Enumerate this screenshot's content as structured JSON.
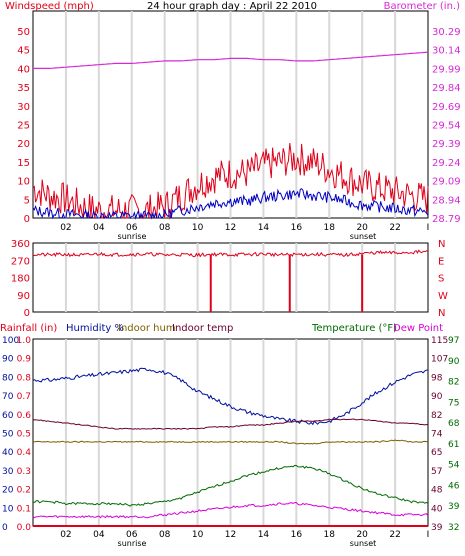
{
  "colors": {
    "wind": "#e0001a",
    "baro": "#d62ad6",
    "dir": "#e0001a",
    "gust": "#0000c0",
    "humidity": "#00109c",
    "indoor_hum": "#7a6000",
    "indoor_temp": "#6a0030",
    "temperature": "#006a00",
    "dew_point": "#d900d9",
    "grid": "#d8d8d8"
  },
  "chart_data": [
    {
      "type": "line",
      "title": "24 hour graph day : April 22 2010",
      "ylabel": "Windspeed (mph)",
      "y2label": "Barometer (in.)",
      "ylim": [
        0,
        50
      ],
      "y2lim": [
        28.79,
        30.29
      ],
      "yticks": [
        "0",
        "5",
        "10",
        "15",
        "20",
        "25",
        "30",
        "35",
        "40",
        "45",
        "50"
      ],
      "y2ticks": [
        "28.79",
        "28.94",
        "29.09",
        "29.24",
        "29.39",
        "29.54",
        "29.69",
        "29.84",
        "29.99",
        "30.14",
        "30.29"
      ],
      "xticks": [
        "02",
        "04",
        "06",
        "08",
        "10",
        "12",
        "14",
        "16",
        "18",
        "20",
        "22",
        "I"
      ],
      "sunrise_label": "sunrise",
      "sunset_label": "sunset",
      "hours": [
        0,
        1,
        2,
        3,
        4,
        5,
        6,
        7,
        8,
        9,
        10,
        11,
        12,
        13,
        14,
        15,
        16,
        17,
        18,
        19,
        20,
        21,
        22,
        23,
        24
      ],
      "series": [
        {
          "values": [
            8,
            6,
            5,
            3,
            2,
            2,
            2,
            2,
            3,
            6,
            9,
            11,
            12,
            12,
            14,
            15,
            16,
            15,
            13,
            11,
            9,
            8,
            7,
            6,
            5
          ]
        },
        {
          "values": [
            2,
            1.5,
            1,
            0.7,
            0.5,
            0.5,
            0.5,
            0.5,
            0.8,
            2,
            3,
            4,
            4.5,
            4.5,
            5.5,
            6,
            6.5,
            6,
            5.5,
            4.5,
            3.5,
            3,
            2.5,
            2,
            1.5
          ]
        },
        {
          "axis": "right",
          "values": [
            29.99,
            29.99,
            30.0,
            30.01,
            30.02,
            30.03,
            30.03,
            30.04,
            30.05,
            30.05,
            30.06,
            30.06,
            30.07,
            30.07,
            30.06,
            30.06,
            30.05,
            30.05,
            30.06,
            30.07,
            30.08,
            30.09,
            30.1,
            30.11,
            30.12
          ]
        }
      ]
    },
    {
      "type": "line",
      "ylim": [
        0,
        360
      ],
      "yticks": [
        "0",
        "90",
        "180",
        "270",
        "360"
      ],
      "y2ticks": [
        "N",
        "W",
        "S",
        "E",
        "N"
      ],
      "hours": [
        0,
        1,
        2,
        3,
        4,
        5,
        6,
        7,
        8,
        9,
        10,
        11,
        12,
        13,
        14,
        15,
        16,
        17,
        18,
        19,
        20,
        21,
        22,
        23,
        24
      ],
      "series": [
        {
          "values": [
            300,
            298,
            300,
            296,
            303,
            299,
            301,
            302,
            298,
            300,
            297,
            301,
            299,
            300,
            303,
            298,
            300,
            301,
            299,
            297,
            305,
            310,
            308,
            312,
            314
          ]
        }
      ],
      "drops": [
        {
          "hour": 10.8,
          "value": 0
        },
        {
          "hour": 15.6,
          "value": 0
        },
        {
          "hour": 20.0,
          "value": 0
        }
      ]
    },
    {
      "type": "line",
      "legend": {
        "rainfall": "Rainfall (in)",
        "humidity": "Humidity %",
        "indoor_hum": "Indoor hum",
        "indoor_temp": "Indoor temp",
        "temperature": "Temperature (°F)",
        "dew_point": "Dew Point"
      },
      "ylim": [
        0,
        100
      ],
      "yticks_pct": [
        "0",
        "10",
        "20",
        "30",
        "40",
        "50",
        "60",
        "70",
        "80",
        "90",
        "100"
      ],
      "yticks_rain": [
        "0.0",
        "0.1",
        "0.2",
        "0.3",
        "0.4",
        "0.5",
        "0.6",
        "0.7",
        "0.8",
        "0.9",
        "1.0"
      ],
      "y2lim": [
        32,
        115
      ],
      "y2ticks_a": [
        "39",
        "40",
        "48",
        "57",
        "65",
        "74",
        "82",
        "90",
        "98",
        "107",
        "115"
      ],
      "y2ticks_b": [
        "32",
        "39",
        "46",
        "54",
        "61",
        "68",
        "75",
        "82",
        "90",
        "97"
      ],
      "xticks": [
        "02",
        "04",
        "06",
        "08",
        "10",
        "12",
        "14",
        "16",
        "18",
        "20",
        "22",
        "I"
      ],
      "sunrise_label": "sunrise",
      "sunset_label": "sunset",
      "hours": [
        0,
        1,
        2,
        3,
        4,
        5,
        6,
        7,
        8,
        9,
        10,
        11,
        12,
        13,
        14,
        15,
        16,
        17,
        18,
        19,
        20,
        21,
        22,
        23,
        24
      ],
      "series": [
        {
          "key": "humidity",
          "values": [
            78,
            78,
            79,
            80,
            81,
            82,
            83,
            84,
            82,
            78,
            72,
            68,
            64,
            61,
            59,
            57,
            56,
            55,
            56,
            60,
            66,
            72,
            77,
            81,
            83
          ]
        },
        {
          "key": "indoor_hum",
          "values": [
            45,
            45,
            45,
            45,
            45,
            45,
            45,
            45,
            45,
            45,
            45,
            45,
            45,
            45,
            45,
            45,
            44,
            44,
            45,
            45,
            45,
            45,
            46,
            45,
            45
          ]
        },
        {
          "key": "indoor_temp",
          "values": [
            57,
            56,
            55,
            54,
            53,
            52,
            52,
            52,
            52,
            52,
            52,
            53,
            53,
            54,
            54,
            55,
            56,
            56,
            57,
            57,
            57,
            56,
            55,
            55,
            54
          ]
        },
        {
          "key": "temperature",
          "values": [
            13,
            13,
            12,
            12,
            12,
            12,
            11,
            12,
            13,
            15,
            18,
            21,
            24,
            27,
            29,
            31,
            32,
            31,
            28,
            24,
            20,
            17,
            15,
            13,
            12
          ]
        },
        {
          "key": "dew_point",
          "values": [
            5,
            5,
            5,
            5,
            5,
            5,
            5,
            5,
            6,
            7,
            8,
            9,
            10,
            11,
            11,
            12,
            12,
            11,
            10,
            9,
            8,
            7,
            6,
            6,
            6
          ]
        },
        {
          "key": "rainfall",
          "values": [
            0,
            0,
            0,
            0,
            0,
            0,
            0,
            0,
            0,
            0,
            0,
            0,
            0,
            0,
            0,
            0,
            0,
            0,
            0,
            0,
            0,
            0,
            0,
            0,
            0
          ]
        }
      ]
    }
  ]
}
